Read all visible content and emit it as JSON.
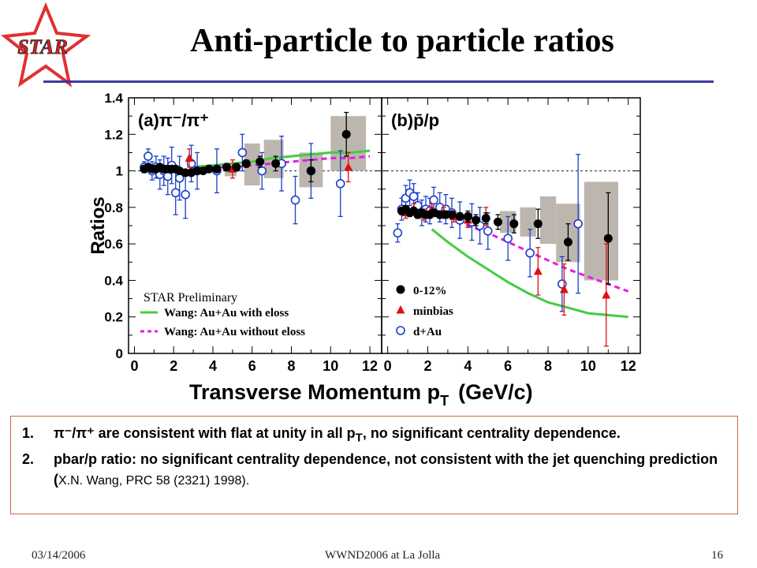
{
  "slide": {
    "title": "Anti-particle to particle ratios",
    "logo_text": "STAR",
    "footer": {
      "date": "03/14/2006",
      "event": "WWND2006 at La Jolla",
      "page": "16"
    },
    "notes": [
      {
        "num": "1.",
        "sym": "π⁻/π⁺",
        "text_a": " are consistent with flat at unity in all p",
        "sub": "T",
        "text_b": ", no significant centrality dependence."
      },
      {
        "num": "2.",
        "text": " pbar/p ratio: no significant centrality dependence, not consistent with the jet quenching prediction (",
        "ref": "X.N. Wang, PRC 58 (2321) 1998)."
      }
    ]
  },
  "chart_data": {
    "type": "scatter",
    "ylabel": "Ratios",
    "xlabel": "Transverse Momentum p",
    "xlabel_sub": "T",
    "xlabel_unit": "(GeV/c)",
    "annotation": "STAR Preliminary",
    "y_ticks": [
      "0",
      "0.2",
      "0.4",
      "0.6",
      "0.8",
      "1",
      "1.2",
      "1.4"
    ],
    "x_ticks": [
      "0",
      "2",
      "4",
      "6",
      "8",
      "10",
      "12"
    ],
    "ylim": [
      0,
      1.4
    ],
    "xlim": [
      -0.3,
      12.6
    ],
    "reference_line": 1,
    "colors": {
      "central": "#000000",
      "minbias": "#e01010",
      "dau": "#1a3fc8",
      "eloss": "#44cc44",
      "noeloss": "#e020e0",
      "sys_box": "#bdb6ae"
    },
    "legend": [
      {
        "series": "central",
        "label": "0-12%"
      },
      {
        "series": "minbias",
        "label": "minbias"
      },
      {
        "series": "dau",
        "label": "d+Au"
      },
      {
        "series": "eloss",
        "label": "Wang: Au+Au with eloss"
      },
      {
        "series": "noeloss",
        "label": "Wang: Au+Au without eloss"
      }
    ],
    "panels": [
      {
        "label": "(a)π⁻/π⁺",
        "central": {
          "x": [
            0.5,
            0.7,
            0.9,
            1.1,
            1.3,
            1.5,
            1.7,
            1.9,
            2.1,
            2.3,
            2.6,
            2.9,
            3.2,
            3.5,
            3.8,
            4.2,
            4.7,
            5.2,
            5.7,
            6.4,
            7.2,
            9.0,
            10.8
          ],
          "y": [
            1.01,
            1.02,
            1.01,
            1.01,
            1.02,
            1.01,
            1.01,
            1.01,
            1.01,
            1.0,
            0.99,
            0.99,
            1.0,
            1.0,
            1.01,
            1.01,
            1.02,
            1.02,
            1.04,
            1.05,
            1.04,
            1.0,
            1.2
          ],
          "err": [
            0.01,
            0.01,
            0.01,
            0.01,
            0.01,
            0.01,
            0.01,
            0.01,
            0.01,
            0.01,
            0.01,
            0.01,
            0.01,
            0.01,
            0.01,
            0.01,
            0.02,
            0.02,
            0.02,
            0.03,
            0.04,
            0.06,
            0.12
          ]
        },
        "minbias": {
          "x": [
            2.8,
            5.0,
            10.9
          ],
          "y": [
            1.07,
            1.01,
            1.02
          ],
          "err": [
            0.05,
            0.05,
            0.08
          ]
        },
        "dau": {
          "x": [
            0.5,
            0.7,
            0.9,
            1.1,
            1.3,
            1.5,
            1.7,
            1.9,
            2.1,
            2.3,
            2.6,
            2.9,
            3.2,
            4.2,
            5.5,
            6.5,
            7.5,
            8.2,
            9.0,
            10.5
          ],
          "y": [
            1.02,
            1.08,
            1.0,
            1.02,
            0.98,
            1.0,
            0.97,
            1.03,
            0.88,
            0.96,
            0.87,
            1.04,
            1.0,
            1.0,
            1.1,
            1.0,
            1.04,
            0.84,
            1.0,
            0.93
          ],
          "err": [
            0.03,
            0.04,
            0.05,
            0.06,
            0.08,
            0.08,
            0.1,
            0.1,
            0.12,
            0.12,
            0.13,
            0.1,
            0.1,
            0.12,
            0.1,
            0.1,
            0.15,
            0.13,
            0.15,
            0.18
          ]
        },
        "sys": [
          {
            "x": [
              4.6,
              5.2
            ],
            "y": [
              0.97,
              1.03
            ]
          },
          {
            "x": [
              5.6,
              6.4
            ],
            "y": [
              0.92,
              1.15
            ]
          },
          {
            "x": [
              6.6,
              7.6
            ],
            "y": [
              0.96,
              1.17
            ]
          },
          {
            "x": [
              8.4,
              9.6
            ],
            "y": [
              0.91,
              1.1
            ]
          },
          {
            "x": [
              10.0,
              11.8
            ],
            "y": [
              1.0,
              1.3
            ]
          }
        ],
        "eloss": {
          "x": [
            2.8,
            4,
            5,
            6,
            7,
            8,
            9,
            10,
            11,
            12
          ],
          "y": [
            1.02,
            1.03,
            1.04,
            1.05,
            1.07,
            1.08,
            1.09,
            1.1,
            1.1,
            1.11
          ]
        },
        "noeloss": {
          "x": [
            2.8,
            4,
            5,
            6,
            7,
            8,
            9,
            10,
            11,
            12
          ],
          "y": [
            1.01,
            1.02,
            1.02,
            1.03,
            1.04,
            1.05,
            1.06,
            1.07,
            1.07,
            1.08
          ]
        }
      },
      {
        "label": "(b)p̄/p",
        "central": {
          "x": [
            0.7,
            0.9,
            1.1,
            1.3,
            1.5,
            1.7,
            1.9,
            2.1,
            2.3,
            2.6,
            2.9,
            3.2,
            3.6,
            4.0,
            4.4,
            4.9,
            5.5,
            6.3,
            7.5,
            9.0,
            11.0
          ],
          "y": [
            0.78,
            0.79,
            0.77,
            0.78,
            0.76,
            0.77,
            0.76,
            0.76,
            0.77,
            0.76,
            0.76,
            0.76,
            0.75,
            0.75,
            0.73,
            0.74,
            0.72,
            0.71,
            0.71,
            0.61,
            0.63
          ],
          "err": [
            0.02,
            0.02,
            0.02,
            0.02,
            0.02,
            0.02,
            0.02,
            0.02,
            0.02,
            0.02,
            0.02,
            0.02,
            0.02,
            0.03,
            0.03,
            0.03,
            0.04,
            0.05,
            0.08,
            0.1,
            0.25
          ]
        },
        "minbias": {
          "x": [
            0.9,
            1.3,
            1.8,
            2.2,
            2.8,
            3.3,
            4.0,
            4.9,
            7.5,
            8.8,
            10.9
          ],
          "y": [
            0.77,
            0.79,
            0.76,
            0.79,
            0.77,
            0.75,
            0.73,
            0.75,
            0.45,
            0.35,
            0.32
          ],
          "err": [
            0.03,
            0.03,
            0.03,
            0.03,
            0.03,
            0.03,
            0.04,
            0.05,
            0.13,
            0.14,
            0.28
          ]
        },
        "dau": {
          "x": [
            0.5,
            0.7,
            0.9,
            1.1,
            1.3,
            1.5,
            1.7,
            1.9,
            2.1,
            2.3,
            2.6,
            2.9,
            3.2,
            3.6,
            4.2,
            4.6,
            5.0,
            6.0,
            7.1,
            8.7,
            9.5
          ],
          "y": [
            0.66,
            0.79,
            0.85,
            0.88,
            0.86,
            0.81,
            0.77,
            0.79,
            0.78,
            0.84,
            0.8,
            0.79,
            0.77,
            0.73,
            0.72,
            0.7,
            0.67,
            0.63,
            0.55,
            0.38,
            0.71
          ],
          "err": [
            0.05,
            0.06,
            0.07,
            0.07,
            0.07,
            0.07,
            0.07,
            0.07,
            0.07,
            0.07,
            0.08,
            0.08,
            0.08,
            0.1,
            0.1,
            0.1,
            0.1,
            0.12,
            0.13,
            0.15,
            0.38
          ]
        },
        "sys": [
          {
            "x": [
              5.6,
              6.4
            ],
            "y": [
              0.66,
              0.78
            ]
          },
          {
            "x": [
              6.6,
              7.4
            ],
            "y": [
              0.64,
              0.8
            ]
          },
          {
            "x": [
              7.6,
              8.4
            ],
            "y": [
              0.6,
              0.86
            ]
          },
          {
            "x": [
              8.4,
              9.6
            ],
            "y": [
              0.5,
              0.82
            ]
          },
          {
            "x": [
              9.8,
              11.5
            ],
            "y": [
              0.4,
              0.94
            ]
          }
        ],
        "eloss": {
          "x": [
            2.2,
            3,
            4,
            5,
            6,
            7,
            8,
            9,
            10,
            11,
            12
          ],
          "y": [
            0.68,
            0.61,
            0.53,
            0.46,
            0.39,
            0.33,
            0.28,
            0.25,
            0.22,
            0.21,
            0.2
          ]
        },
        "noeloss": {
          "x": [
            3.5,
            4,
            5,
            6,
            7,
            8,
            9,
            10,
            11,
            12
          ],
          "y": [
            0.73,
            0.7,
            0.66,
            0.61,
            0.56,
            0.51,
            0.46,
            0.42,
            0.38,
            0.34
          ]
        }
      }
    ]
  }
}
